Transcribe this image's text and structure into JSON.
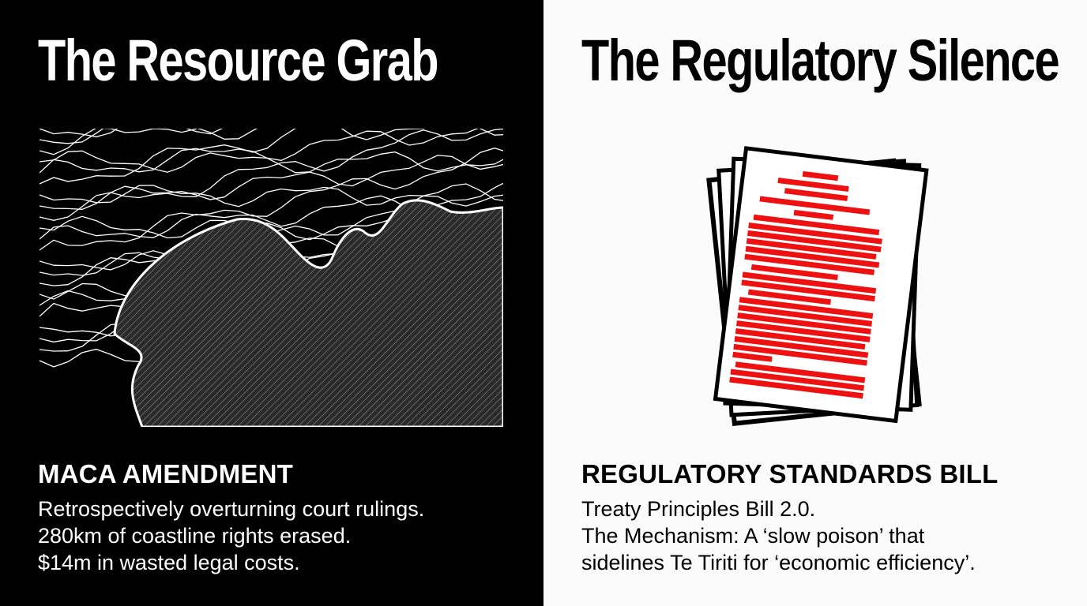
{
  "left": {
    "title": "The Resource Grab",
    "heading": "MACA AMENDMENT",
    "lines": [
      "Retrospectively overturning court rulings.",
      "280km of coastline rights erased.",
      "$14m in wasted legal costs."
    ],
    "illustration": "coastline-contour-map"
  },
  "right": {
    "title": "The Regulatory Silence",
    "heading": "REGULATORY STANDARDS BILL",
    "lines": [
      "Treaty Principles Bill 2.0.",
      "The Mechanism: A ‘slow poison’ that",
      "sidelines Te Tiriti for ‘economic efficiency’."
    ],
    "illustration": "redacted-documents-stack"
  },
  "colors": {
    "left_background": "#000000",
    "right_background": "#fbfbfb",
    "redaction": "#ee1111"
  }
}
